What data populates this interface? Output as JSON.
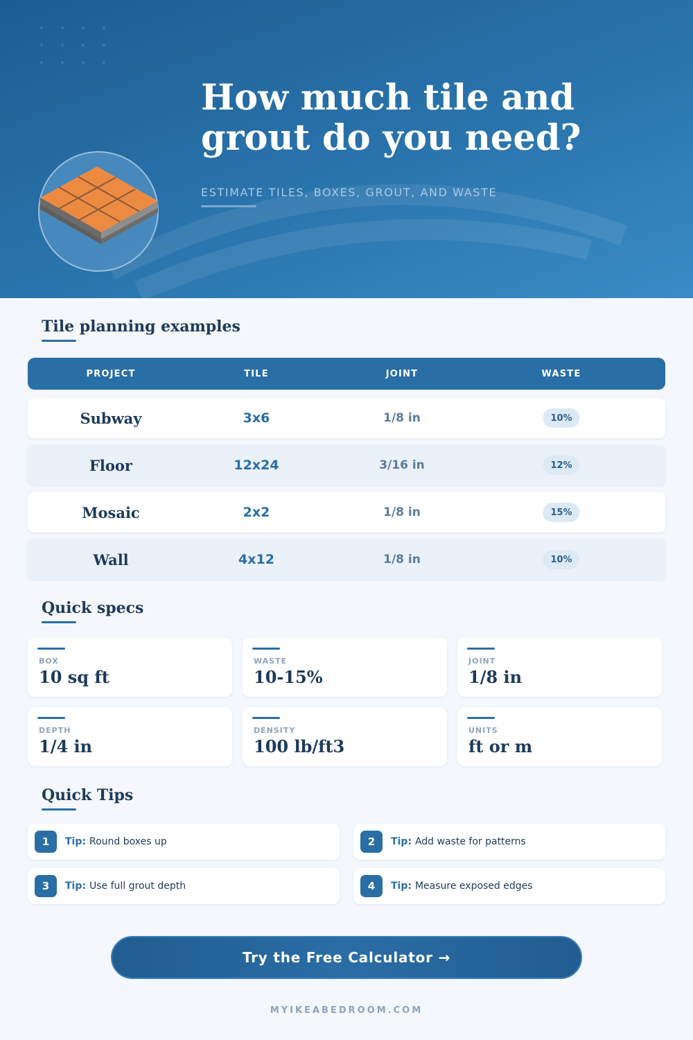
{
  "header": {
    "title": "How much tile and grout do you need?",
    "subtitle": "ESTIMATE TILES, BOXES, GROUT, AND WASTE"
  },
  "table": {
    "title": "Tile planning examples",
    "columns": [
      "PROJECT",
      "TILE",
      "JOINT",
      "WASTE"
    ],
    "rows": [
      [
        "Subway",
        "3x6",
        "1/8 in",
        "10%"
      ],
      [
        "Floor",
        "12x24",
        "3/16 in",
        "12%"
      ],
      [
        "Mosaic",
        "2x2",
        "1/8 in",
        "15%"
      ],
      [
        "Wall",
        "4x12",
        "1/8 in",
        "10%"
      ]
    ]
  },
  "specs": {
    "title": "Quick specs",
    "items": [
      {
        "label": "BOX",
        "value": "10 sq ft"
      },
      {
        "label": "WASTE",
        "value": "10-15%"
      },
      {
        "label": "JOINT",
        "value": "1/8 in"
      },
      {
        "label": "DEPTH",
        "value": "1/4 in"
      },
      {
        "label": "DENSITY",
        "value": "100 lb/ft3"
      },
      {
        "label": "UNITS",
        "value": "ft or m"
      }
    ]
  },
  "tips": {
    "title": "Quick Tips",
    "items": [
      {
        "number": 1,
        "prefix": "Tip:",
        "text": "Round boxes up"
      },
      {
        "number": 2,
        "prefix": "Tip:",
        "text": "Add waste for patterns"
      },
      {
        "number": 3,
        "prefix": "Tip:",
        "text": "Use full grout depth"
      },
      {
        "number": 4,
        "prefix": "Tip:",
        "text": "Measure exposed edges"
      }
    ]
  },
  "cta": {
    "label": "Try the Free Calculator →"
  },
  "footer": {
    "site": "MYIKEABEDROOM.COM"
  }
}
